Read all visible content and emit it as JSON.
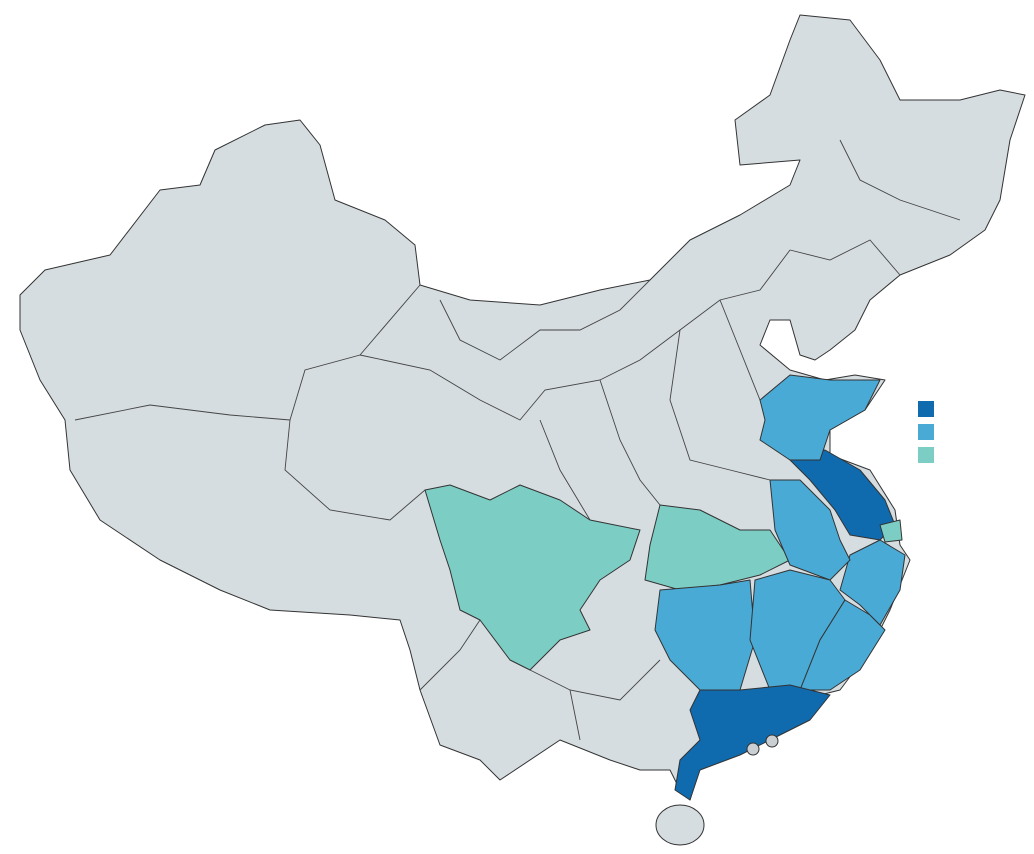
{
  "map": {
    "colors": {
      "base": "#d5dde0",
      "level_high": "#0f6aae",
      "level_mid": "#4aaad6",
      "level_low": "#7ccdc4",
      "special_region": "#c9cfd2"
    },
    "regions": [
      {
        "id": "sichuan",
        "level": "level_low"
      },
      {
        "id": "hubei",
        "level": "level_low"
      },
      {
        "id": "shanghai",
        "level": "level_low"
      },
      {
        "id": "jiangsu",
        "level": "level_high"
      },
      {
        "id": "guangdong",
        "level": "level_high"
      },
      {
        "id": "shandong",
        "level": "level_mid"
      },
      {
        "id": "anhui",
        "level": "level_mid"
      },
      {
        "id": "zhejiang",
        "level": "level_mid"
      },
      {
        "id": "jiangxi",
        "level": "level_mid"
      },
      {
        "id": "hunan",
        "level": "level_mid"
      },
      {
        "id": "fujian",
        "level": "level_mid"
      }
    ],
    "legend": [
      {
        "level": "level_high"
      },
      {
        "level": "level_mid"
      },
      {
        "level": "level_low"
      }
    ]
  }
}
